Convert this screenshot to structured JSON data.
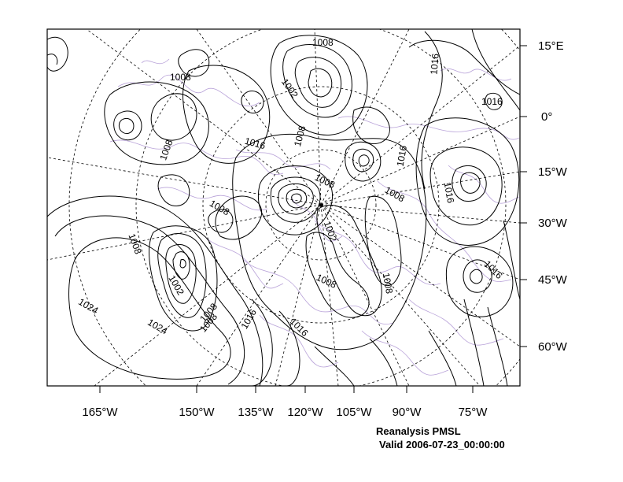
{
  "map": {
    "right_axis_labels": [
      "15°E",
      "0°",
      "15°W",
      "30°W",
      "45°W",
      "60°W"
    ],
    "bottom_axis_labels": [
      "165°W",
      "150°W",
      "135°W",
      "120°W",
      "105°W",
      "90°W",
      "75°W"
    ],
    "contour_labels": [
      "1008",
      "1008",
      "1002",
      "1016",
      "1016",
      "1008",
      "1016",
      "1008",
      "1008",
      "1016",
      "1008",
      "1002",
      "1008",
      "1016",
      "1016",
      "1008",
      "1008",
      "1008",
      "1008",
      "1024",
      "1002",
      "1008",
      "1024",
      "1016",
      "1016"
    ],
    "colors": {
      "contour": "#000000",
      "coastline": "#b9a3d9",
      "grid": "#000000"
    }
  },
  "caption": {
    "title": "Reanalysis PMSL",
    "valid": "Valid 2006-07-23_00:00:00"
  }
}
